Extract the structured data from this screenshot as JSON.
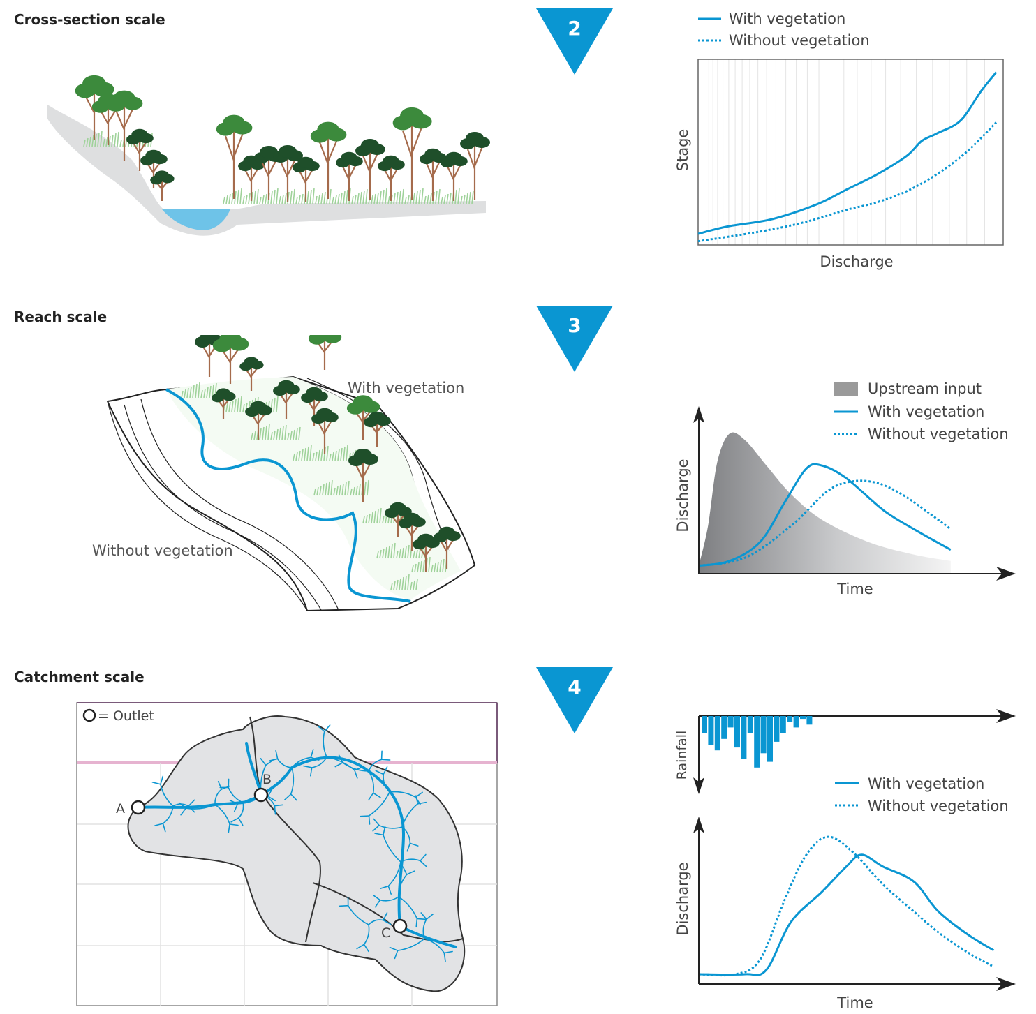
{
  "colors": {
    "accent": "#0a96d2",
    "water": "#6ec3e8",
    "catchment_fill": "#e2e3e5",
    "tree_green": "#3c8a3c",
    "tree_dark": "#1f4f2a",
    "trunk": "#a56b4c",
    "grass": "#9fd29a",
    "ground": "#dedfe0"
  },
  "panel1": {
    "heading": "Cross-section scale",
    "step": "2",
    "legend": {
      "with": "With vegetation",
      "without": "Without vegetation"
    },
    "chart_data": {
      "type": "line",
      "xlabel": "Discharge",
      "ylabel": "Stage",
      "ylim": [
        0,
        1
      ],
      "xlim": [
        0,
        1
      ],
      "grid": "vertical",
      "series": [
        {
          "name": "With vegetation",
          "style": "solid",
          "x": [
            0,
            0.1,
            0.25,
            0.4,
            0.5,
            0.6,
            0.7,
            0.75,
            0.8,
            0.88,
            0.95,
            1.0
          ],
          "y": [
            0.06,
            0.1,
            0.14,
            0.22,
            0.3,
            0.38,
            0.48,
            0.56,
            0.6,
            0.67,
            0.83,
            0.93
          ]
        },
        {
          "name": "Without vegetation",
          "style": "dotted",
          "x": [
            0,
            0.2,
            0.35,
            0.5,
            0.6,
            0.7,
            0.8,
            0.9,
            1.0
          ],
          "y": [
            0.02,
            0.07,
            0.12,
            0.19,
            0.23,
            0.29,
            0.38,
            0.5,
            0.66
          ]
        }
      ]
    }
  },
  "panel2": {
    "heading": "Reach scale",
    "step": "3",
    "label_with": "With vegetation",
    "label_without": "Without vegetation",
    "legend": {
      "upstream": "Upstream input",
      "with": "With vegetation",
      "without": "Without vegetation"
    },
    "chart_data": {
      "type": "area",
      "xlabel": "Time",
      "ylabel": "Discharge",
      "series": [
        {
          "name": "Upstream input",
          "style": "area",
          "x": [
            0,
            0.03,
            0.06,
            0.1,
            0.15,
            0.22,
            0.3,
            0.4,
            0.55,
            0.7,
            0.82
          ],
          "y": [
            0.05,
            0.3,
            0.7,
            0.88,
            0.84,
            0.68,
            0.5,
            0.34,
            0.2,
            0.12,
            0.08
          ]
        },
        {
          "name": "With vegetation",
          "style": "solid",
          "x": [
            0,
            0.1,
            0.2,
            0.28,
            0.35,
            0.4,
            0.48,
            0.6,
            0.7,
            0.82
          ],
          "y": [
            0.05,
            0.08,
            0.2,
            0.45,
            0.66,
            0.68,
            0.6,
            0.4,
            0.28,
            0.15
          ]
        },
        {
          "name": "Without vegetation",
          "style": "dotted",
          "x": [
            0,
            0.15,
            0.3,
            0.42,
            0.5,
            0.58,
            0.66,
            0.75,
            0.82
          ],
          "y": [
            0.05,
            0.1,
            0.3,
            0.52,
            0.58,
            0.57,
            0.5,
            0.38,
            0.28
          ]
        }
      ]
    }
  },
  "panel3": {
    "heading": "Catchment scale",
    "step": "4",
    "outlet_legend": "= Outlet",
    "outlets": [
      "A",
      "B",
      "C"
    ],
    "legend": {
      "with": "With vegetation",
      "without": "Without vegetation"
    },
    "rainfall": {
      "ylabel": "Rainfall",
      "values": [
        0.3,
        0.5,
        0.6,
        0.4,
        0.2,
        0.55,
        0.75,
        0.3,
        0.9,
        0.65,
        0.8,
        0.45,
        0.3,
        0.1,
        0.2,
        0.05,
        0.15
      ]
    },
    "chart_data": {
      "type": "line",
      "xlabel": "Time",
      "ylabel": "Discharge",
      "series": [
        {
          "name": "With vegetation",
          "style": "solid",
          "x": [
            0,
            0.15,
            0.22,
            0.3,
            0.4,
            0.48,
            0.53,
            0.6,
            0.7,
            0.78,
            0.88,
            0.96
          ],
          "y": [
            0.0,
            0.0,
            0.03,
            0.35,
            0.55,
            0.72,
            0.8,
            0.72,
            0.62,
            0.42,
            0.26,
            0.16
          ]
        },
        {
          "name": "Without vegetation",
          "style": "dotted",
          "x": [
            0,
            0.12,
            0.2,
            0.28,
            0.35,
            0.42,
            0.5,
            0.6,
            0.7,
            0.78,
            0.88,
            0.96
          ],
          "y": [
            0.0,
            0.0,
            0.1,
            0.5,
            0.8,
            0.92,
            0.82,
            0.6,
            0.42,
            0.28,
            0.14,
            0.05
          ]
        }
      ]
    }
  }
}
